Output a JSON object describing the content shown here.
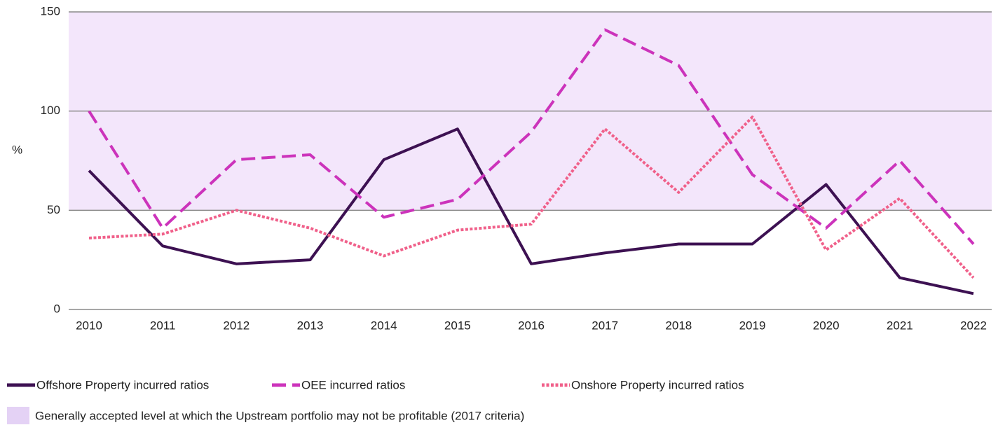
{
  "chart_data": {
    "type": "line",
    "ylabel": "%",
    "categories": [
      "2010",
      "2011",
      "2012",
      "2013",
      "2014",
      "2015",
      "2016",
      "2017",
      "2018",
      "2019",
      "2020",
      "2021",
      "2022"
    ],
    "series": [
      {
        "name": "Offshore Property incurred ratios",
        "color": "#3d1152",
        "style": "solid",
        "values": [
          70,
          32,
          23,
          25,
          75.5,
          91,
          23,
          28.5,
          33,
          33,
          63,
          16,
          8
        ]
      },
      {
        "name": "OEE incurred ratios",
        "color": "#cc33bb",
        "style": "dashed",
        "values": [
          100,
          41,
          75.5,
          78,
          46.5,
          55.5,
          89.5,
          141,
          123,
          68,
          41,
          75,
          33
        ]
      },
      {
        "name": "Onshore Property incurred ratios",
        "color": "#f0608a",
        "style": "dotted",
        "values": [
          36,
          38,
          50,
          41,
          27,
          40,
          43,
          91,
          59,
          97,
          30,
          56,
          16
        ]
      }
    ],
    "band": {
      "from": 50,
      "to": 150,
      "color": "#f3e6fb",
      "legend_color": "#e4d2f5",
      "label": "Generally accepted level at which the Upstream portfolio may not be profitable (2017 criteria)"
    },
    "ylim": [
      0,
      150
    ],
    "yticks": [
      0,
      50,
      100,
      150
    ],
    "grid": true
  }
}
